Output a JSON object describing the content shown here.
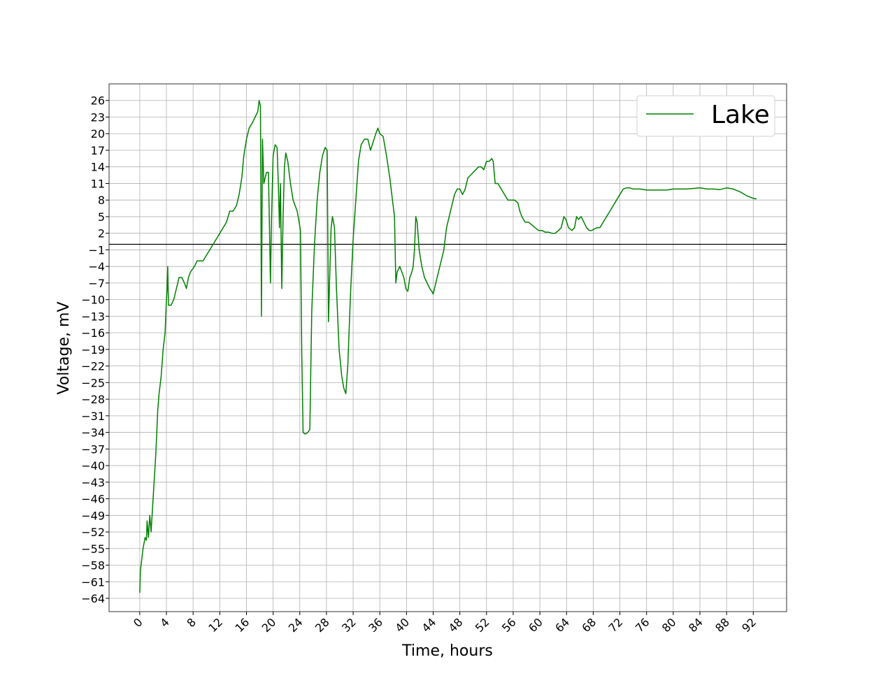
{
  "chart_data": {
    "type": "line",
    "title": "",
    "xlabel": "Time, hours",
    "ylabel": "Voltage, mV",
    "xlim": [
      -4.6,
      97
    ],
    "ylim": [
      -66.4,
      29
    ],
    "x_ticks": [
      "0",
      "4",
      "8",
      "12",
      "16",
      "20",
      "24",
      "28",
      "32",
      "36",
      "40",
      "44",
      "48",
      "52",
      "56",
      "60",
      "64",
      "68",
      "72",
      "76",
      "80",
      "84",
      "88",
      "92"
    ],
    "y_ticks": [
      "26",
      "23",
      "20",
      "17",
      "14",
      "11",
      "8",
      "5",
      "2",
      "−1",
      "−4",
      "−7",
      "−10",
      "−13",
      "−16",
      "−19",
      "−22",
      "−25",
      "−28",
      "−31",
      "−34",
      "−37",
      "−40",
      "−43",
      "−46",
      "−49",
      "−52",
      "−55",
      "−58",
      "−61",
      "−64"
    ],
    "grid": true,
    "reference_line_y": 0,
    "legend_position": "top-right",
    "series": [
      {
        "name": "Lake",
        "color": "#008000",
        "points": [
          [
            0,
            -63
          ],
          [
            0.1,
            -59
          ],
          [
            0.3,
            -57
          ],
          [
            0.5,
            -55
          ],
          [
            0.8,
            -53
          ],
          [
            1.0,
            -53.5
          ],
          [
            1.1,
            -50
          ],
          [
            1.3,
            -53
          ],
          [
            1.5,
            -49
          ],
          [
            1.7,
            -52
          ],
          [
            1.9,
            -48
          ],
          [
            2.1,
            -44
          ],
          [
            2.4,
            -38
          ],
          [
            2.7,
            -30
          ],
          [
            2.9,
            -27
          ],
          [
            3.2,
            -24
          ],
          [
            3.5,
            -19
          ],
          [
            3.8,
            -16
          ],
          [
            4.0,
            -10
          ],
          [
            4.1,
            -8
          ],
          [
            4.2,
            -4
          ],
          [
            4.3,
            -11
          ],
          [
            4.7,
            -11
          ],
          [
            5.1,
            -10
          ],
          [
            5.5,
            -8
          ],
          [
            5.9,
            -6
          ],
          [
            6.3,
            -6
          ],
          [
            6.7,
            -7
          ],
          [
            7.0,
            -8
          ],
          [
            7.3,
            -6
          ],
          [
            7.6,
            -5
          ],
          [
            8.2,
            -4
          ],
          [
            8.6,
            -3
          ],
          [
            9.0,
            -3
          ],
          [
            9.5,
            -3
          ],
          [
            10.0,
            -2
          ],
          [
            10.5,
            -1
          ],
          [
            11.0,
            0
          ],
          [
            11.5,
            1
          ],
          [
            12.0,
            2
          ],
          [
            12.5,
            3
          ],
          [
            13.0,
            4
          ],
          [
            13.5,
            6
          ],
          [
            14.0,
            6
          ],
          [
            14.5,
            7
          ],
          [
            14.9,
            9
          ],
          [
            15.3,
            12
          ],
          [
            15.6,
            16
          ],
          [
            16.0,
            19
          ],
          [
            16.4,
            21
          ],
          [
            16.9,
            22
          ],
          [
            17.3,
            23
          ],
          [
            17.7,
            24
          ],
          [
            17.9,
            26
          ],
          [
            18.1,
            25
          ],
          [
            18.25,
            -13
          ],
          [
            18.4,
            19
          ],
          [
            18.6,
            11
          ],
          [
            19.0,
            13
          ],
          [
            19.3,
            13
          ],
          [
            19.45,
            3
          ],
          [
            19.6,
            -7
          ],
          [
            19.75,
            4
          ],
          [
            20.0,
            16
          ],
          [
            20.3,
            18
          ],
          [
            20.6,
            17.5
          ],
          [
            20.8,
            10
          ],
          [
            20.95,
            3
          ],
          [
            21.1,
            11
          ],
          [
            21.3,
            -8
          ],
          [
            21.5,
            5
          ],
          [
            21.7,
            14
          ],
          [
            21.9,
            16.5
          ],
          [
            22.2,
            15
          ],
          [
            22.6,
            11
          ],
          [
            23.0,
            8
          ],
          [
            23.3,
            7
          ],
          [
            23.6,
            6
          ],
          [
            23.9,
            4
          ],
          [
            24.1,
            2.5
          ],
          [
            24.3,
            -20
          ],
          [
            24.5,
            -34
          ],
          [
            24.8,
            -34.3
          ],
          [
            25.2,
            -34
          ],
          [
            25.5,
            -33.5
          ],
          [
            25.8,
            -12
          ],
          [
            26.2,
            0
          ],
          [
            26.6,
            8
          ],
          [
            27.0,
            13
          ],
          [
            27.4,
            16
          ],
          [
            27.8,
            17.5
          ],
          [
            28.1,
            17
          ],
          [
            28.3,
            -14
          ],
          [
            28.5,
            -5
          ],
          [
            28.7,
            3
          ],
          [
            28.9,
            5
          ],
          [
            29.2,
            3
          ],
          [
            29.5,
            -8
          ],
          [
            29.9,
            -19
          ],
          [
            30.3,
            -24
          ],
          [
            30.6,
            -26
          ],
          [
            30.9,
            -27
          ],
          [
            31.2,
            -22
          ],
          [
            31.6,
            -9
          ],
          [
            32.0,
            1
          ],
          [
            32.4,
            8
          ],
          [
            32.8,
            15
          ],
          [
            33.2,
            18
          ],
          [
            33.7,
            19
          ],
          [
            34.2,
            19
          ],
          [
            34.6,
            17
          ],
          [
            35.0,
            18.5
          ],
          [
            35.4,
            20
          ],
          [
            35.7,
            21
          ],
          [
            36.0,
            20
          ],
          [
            36.5,
            19.5
          ],
          [
            37.0,
            16
          ],
          [
            37.5,
            12
          ],
          [
            37.9,
            8
          ],
          [
            38.2,
            5
          ],
          [
            38.4,
            -7
          ],
          [
            38.6,
            -5
          ],
          [
            39.0,
            -4
          ],
          [
            39.3,
            -5
          ],
          [
            39.6,
            -6
          ],
          [
            39.9,
            -8
          ],
          [
            40.2,
            -8.5
          ],
          [
            40.5,
            -6
          ],
          [
            40.8,
            -5
          ],
          [
            41.0,
            -4
          ],
          [
            41.2,
            -1
          ],
          [
            41.4,
            5
          ],
          [
            41.6,
            4
          ],
          [
            41.9,
            -1
          ],
          [
            42.3,
            -4
          ],
          [
            42.7,
            -6
          ],
          [
            43.1,
            -7
          ],
          [
            43.5,
            -8
          ],
          [
            43.8,
            -8.5
          ],
          [
            44.0,
            -9
          ],
          [
            44.4,
            -7
          ],
          [
            44.8,
            -5
          ],
          [
            45.2,
            -3
          ],
          [
            45.6,
            -1
          ],
          [
            46.0,
            3
          ],
          [
            46.4,
            5
          ],
          [
            46.8,
            7
          ],
          [
            47.2,
            9
          ],
          [
            47.6,
            10
          ],
          [
            48.0,
            10
          ],
          [
            48.4,
            9
          ],
          [
            48.8,
            10
          ],
          [
            49.2,
            12
          ],
          [
            49.6,
            12.5
          ],
          [
            50.0,
            13
          ],
          [
            50.4,
            13.5
          ],
          [
            50.8,
            14
          ],
          [
            51.2,
            14
          ],
          [
            51.6,
            13.5
          ],
          [
            52.0,
            15
          ],
          [
            52.4,
            15
          ],
          [
            52.8,
            15.5
          ],
          [
            53.0,
            15
          ],
          [
            53.3,
            11
          ],
          [
            53.7,
            11
          ],
          [
            54.2,
            10
          ],
          [
            54.7,
            9
          ],
          [
            55.2,
            8
          ],
          [
            55.7,
            8
          ],
          [
            56.2,
            8
          ],
          [
            56.7,
            7.5
          ],
          [
            57.0,
            6
          ],
          [
            57.3,
            5
          ],
          [
            57.8,
            4
          ],
          [
            58.3,
            4
          ],
          [
            58.8,
            3.5
          ],
          [
            59.3,
            3
          ],
          [
            59.8,
            2.5
          ],
          [
            60.3,
            2.5
          ],
          [
            60.8,
            2.2
          ],
          [
            61.3,
            2.2
          ],
          [
            61.8,
            2
          ],
          [
            62.3,
            2
          ],
          [
            62.8,
            2.5
          ],
          [
            63.2,
            3
          ],
          [
            63.6,
            5
          ],
          [
            63.9,
            4.5
          ],
          [
            64.3,
            3
          ],
          [
            64.8,
            2.5
          ],
          [
            65.2,
            3
          ],
          [
            65.5,
            5
          ],
          [
            65.8,
            4.5
          ],
          [
            66.2,
            5
          ],
          [
            66.6,
            4
          ],
          [
            67.0,
            3
          ],
          [
            67.4,
            2.5
          ],
          [
            67.8,
            2.5
          ],
          [
            68.2,
            2.8
          ],
          [
            68.6,
            3
          ],
          [
            69.0,
            3
          ],
          [
            69.5,
            4
          ],
          [
            70.0,
            5
          ],
          [
            70.5,
            6
          ],
          [
            71.0,
            7
          ],
          [
            71.5,
            8
          ],
          [
            72.0,
            9
          ],
          [
            72.5,
            10
          ],
          [
            73.0,
            10.2
          ],
          [
            73.5,
            10.2
          ],
          [
            74.0,
            10
          ],
          [
            75.0,
            10
          ],
          [
            76.0,
            9.8
          ],
          [
            77.0,
            9.8
          ],
          [
            78.0,
            9.8
          ],
          [
            79.0,
            9.8
          ],
          [
            80.0,
            10
          ],
          [
            81.0,
            10
          ],
          [
            82.0,
            10
          ],
          [
            83.0,
            10.1
          ],
          [
            84.0,
            10.2
          ],
          [
            85.0,
            10
          ],
          [
            86.0,
            10
          ],
          [
            87.0,
            9.9
          ],
          [
            88.0,
            10.2
          ],
          [
            89.0,
            10
          ],
          [
            90.0,
            9.5
          ],
          [
            91.0,
            8.8
          ],
          [
            92.0,
            8.3
          ],
          [
            92.5,
            8.2
          ]
        ]
      }
    ]
  }
}
